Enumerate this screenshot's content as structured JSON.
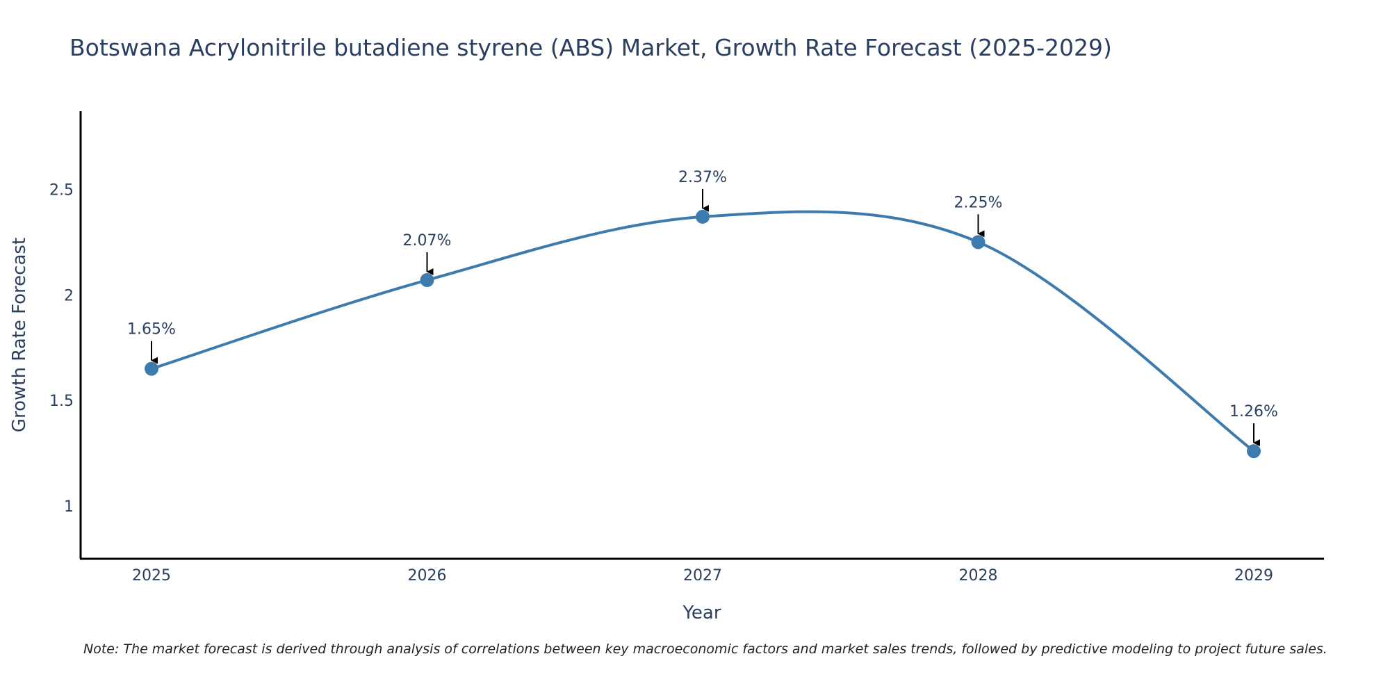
{
  "chart_data": {
    "type": "line",
    "title": "Botswana Acrylonitrile butadiene styrene (ABS) Market, Growth Rate Forecast (2025-2029)",
    "xlabel": "Year",
    "ylabel": "Growth Rate Forecast",
    "categories": [
      "2025",
      "2026",
      "2027",
      "2028",
      "2029"
    ],
    "values": [
      1.65,
      2.07,
      2.37,
      2.25,
      1.26
    ],
    "data_labels": [
      "1.65%",
      "2.07%",
      "2.37%",
      "2.25%",
      "1.26%"
    ],
    "y_ticks": [
      1,
      1.5,
      2,
      2.5
    ],
    "y_tick_labels": [
      "1",
      "1.5",
      "2",
      "2.5"
    ],
    "ylim": [
      0.75,
      2.87
    ],
    "grid": false,
    "line_shape": "spline",
    "line_color": "#3d7aad",
    "marker_color": "#3d7aad"
  },
  "note": "Note: The market forecast is derived through analysis of correlations between key macroeconomic factors and market sales trends, followed by predictive modeling to project future sales."
}
